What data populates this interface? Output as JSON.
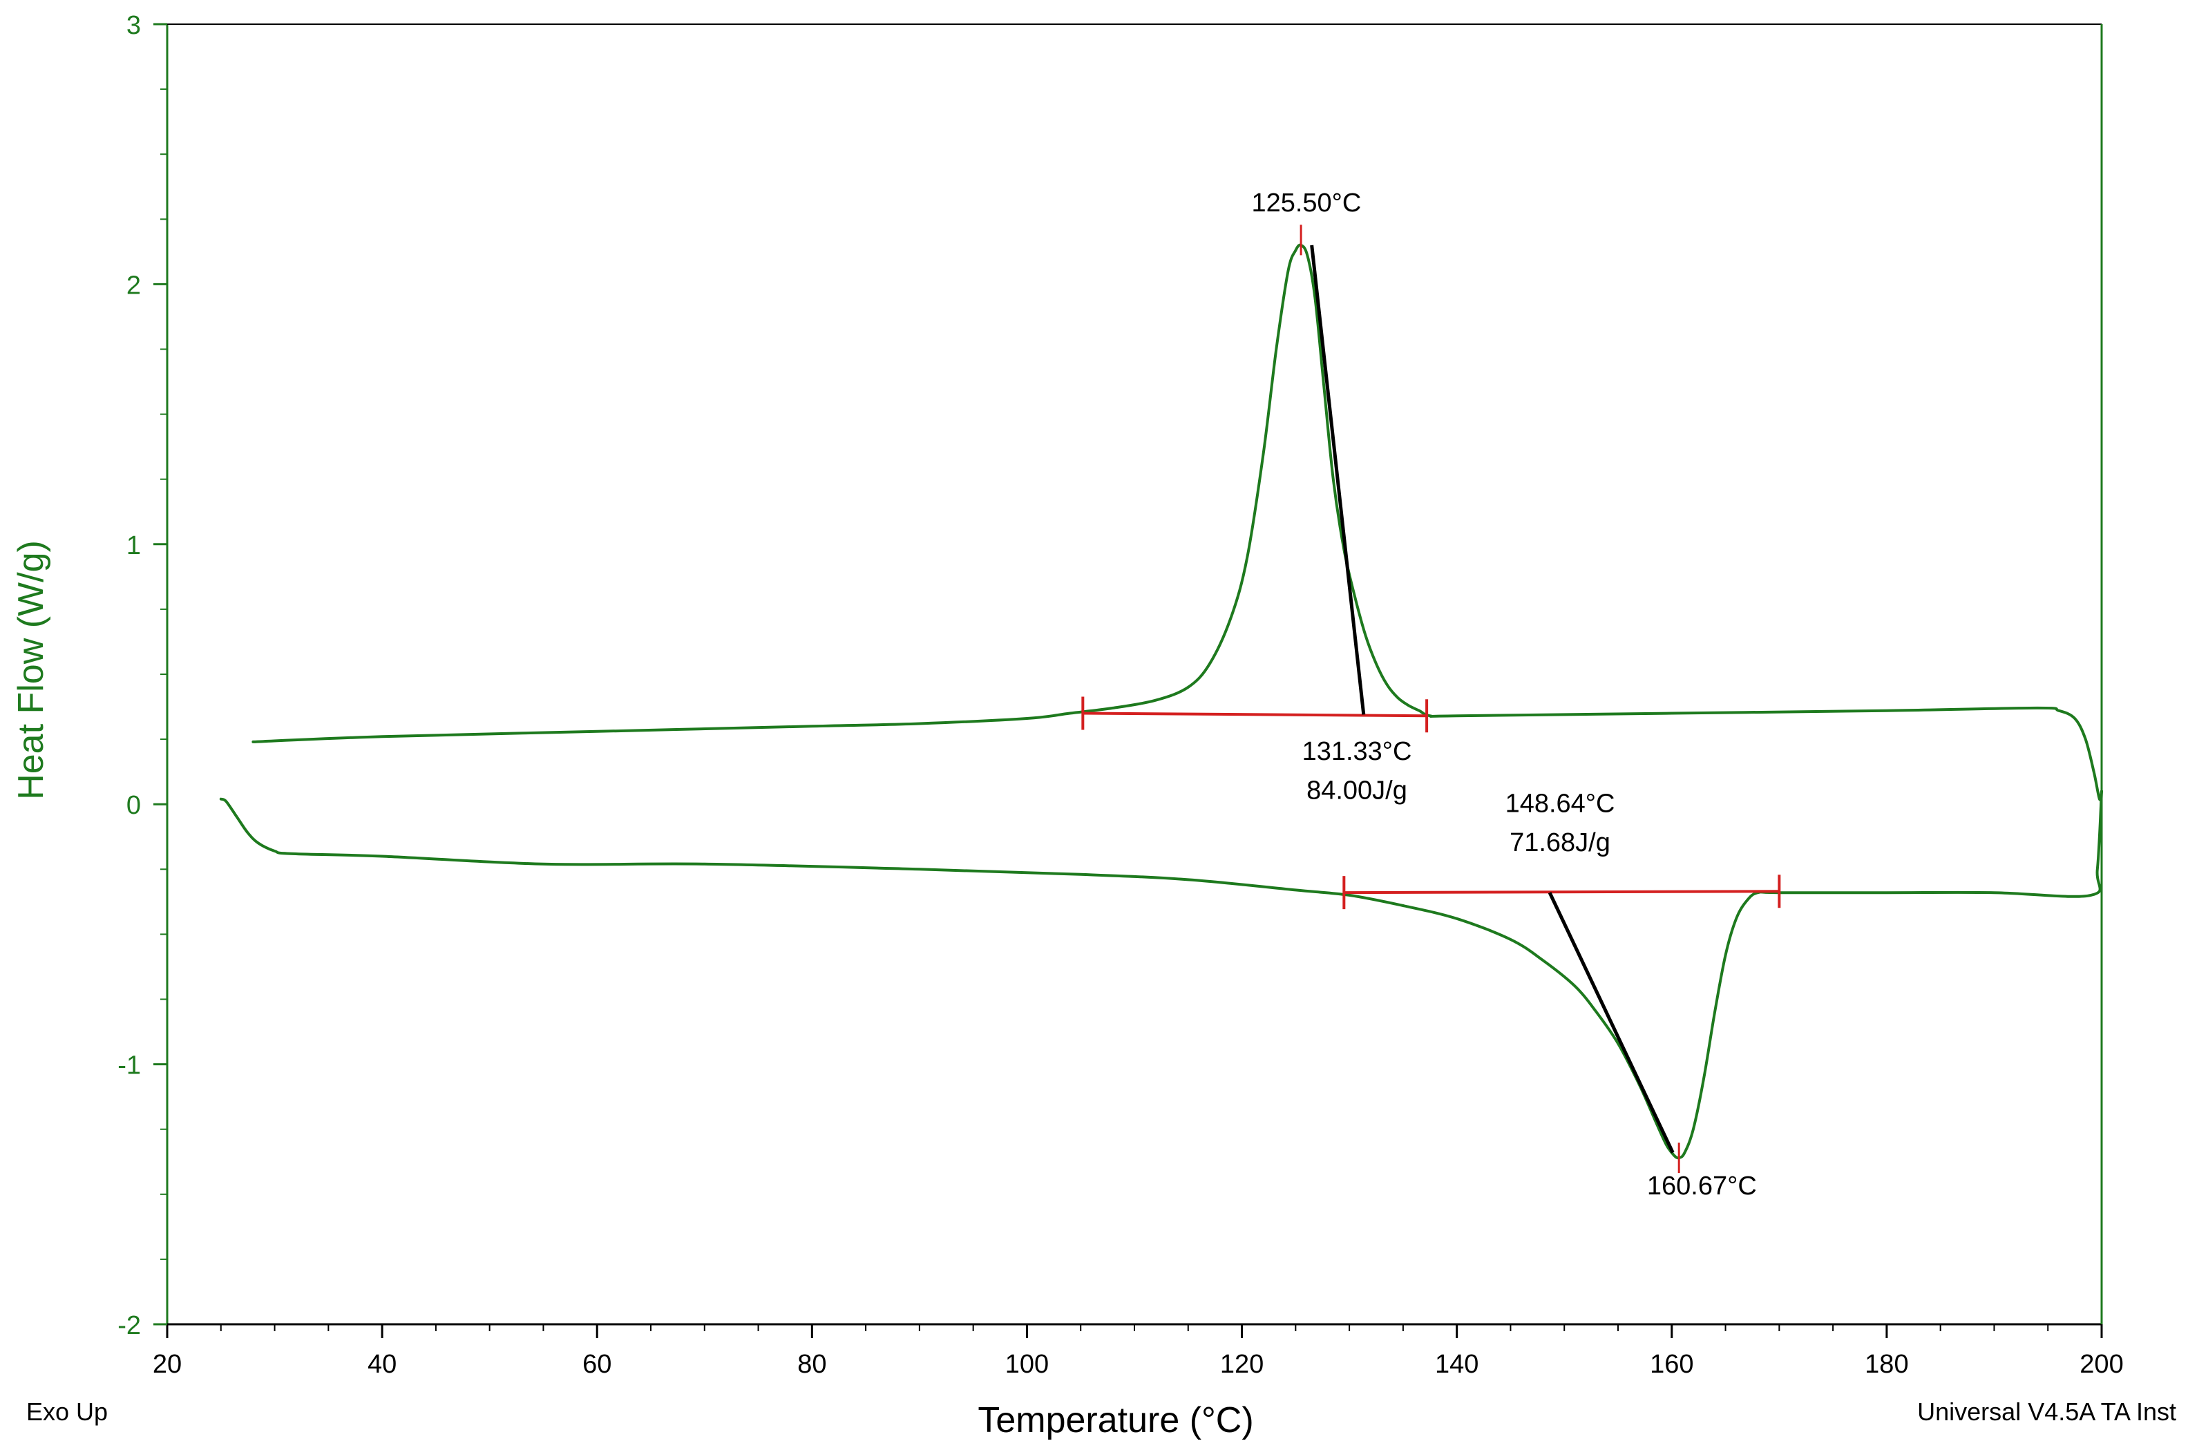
{
  "chart_data": {
    "type": "line",
    "title": "",
    "xlabel": "Temperature (°C)",
    "ylabel": "Heat Flow (W/g)",
    "xlim": [
      20,
      200
    ],
    "ylim": [
      -2,
      3
    ],
    "x_ticks": [
      20,
      40,
      60,
      80,
      100,
      120,
      140,
      160,
      180,
      200
    ],
    "x_tick_labels": [
      "20",
      "40",
      "60",
      "80",
      "100",
      "120",
      "140",
      "160",
      "180",
      "200"
    ],
    "y_ticks": [
      3,
      2,
      1,
      0,
      -1,
      -2
    ],
    "y_tick_labels": [
      "3",
      "2",
      "1",
      "0",
      "-1",
      "-2"
    ],
    "x_minor_step": 5,
    "y_minor_step": 0.25,
    "footer_left": "Exo Up",
    "footer_right": "Universal V4.5A TA Inst",
    "colors": {
      "curve": "#1e7a1e",
      "axis": "#1e7a1e",
      "baseline": "#d42020",
      "annotation": "#000000"
    },
    "series": [
      {
        "name": "cooling",
        "x": [
          28,
          40,
          60,
          80,
          90,
          100,
          104,
          108,
          112,
          115,
          117,
          119,
          120.5,
          122,
          123.2,
          124.3,
          125.0,
          125.5,
          126.1,
          126.8,
          127.6,
          128.5,
          129.5,
          130.5,
          131.5,
          132.5,
          133.5,
          134.5,
          135.5,
          136.5,
          137.5,
          140,
          160,
          180,
          194,
          196,
          197.5,
          198.5,
          199.3,
          199.8,
          200
        ],
        "y": [
          0.24,
          0.26,
          0.28,
          0.3,
          0.31,
          0.33,
          0.35,
          0.37,
          0.4,
          0.45,
          0.54,
          0.72,
          0.95,
          1.35,
          1.75,
          2.05,
          2.13,
          2.15,
          2.11,
          1.95,
          1.62,
          1.25,
          0.98,
          0.8,
          0.65,
          0.54,
          0.46,
          0.41,
          0.38,
          0.36,
          0.34,
          0.34,
          0.35,
          0.36,
          0.37,
          0.36,
          0.33,
          0.25,
          0.12,
          0.02,
          0.05
        ]
      },
      {
        "name": "heating",
        "x": [
          25,
          25.5,
          26.5,
          27.5,
          28.5,
          30,
          31.5,
          40,
          55,
          70,
          90,
          105,
          115,
          125,
          130,
          135,
          140,
          145,
          148,
          151,
          153,
          155,
          157,
          158.5,
          159.5,
          160.2,
          160.67,
          161.2,
          162,
          163,
          164,
          165,
          166,
          167,
          168,
          170,
          180,
          190,
          199,
          199.6,
          200
        ],
        "y": [
          0.02,
          0.01,
          -0.05,
          -0.11,
          -0.15,
          -0.18,
          -0.19,
          -0.2,
          -0.23,
          -0.23,
          -0.25,
          -0.27,
          -0.29,
          -0.33,
          -0.35,
          -0.39,
          -0.44,
          -0.52,
          -0.6,
          -0.7,
          -0.8,
          -0.92,
          -1.08,
          -1.22,
          -1.31,
          -1.35,
          -1.36,
          -1.34,
          -1.25,
          -1.05,
          -0.8,
          -0.58,
          -0.44,
          -0.37,
          -0.34,
          -0.34,
          -0.34,
          -0.34,
          -0.35,
          -0.25,
          0.05
        ]
      }
    ],
    "integration_baselines": [
      {
        "name": "crystallization",
        "x1": 105.2,
        "y1": 0.35,
        "x2": 137.2,
        "y2": 0.34
      },
      {
        "name": "melting",
        "x1": 129.5,
        "y1": -0.34,
        "x2": 170,
        "y2": -0.335
      }
    ],
    "peak_markers": [
      {
        "name": "crystallization-peak",
        "x": 125.5,
        "y": 2.17
      },
      {
        "name": "melting-peak",
        "x": 160.67,
        "y": -1.36
      }
    ],
    "leader_lines": [
      {
        "name": "crystallization-leader",
        "x1": 126.5,
        "y1": 2.15,
        "x2": 131.33,
        "y2": 0.345
      },
      {
        "name": "melting-leader",
        "x1": 148.64,
        "y1": -0.34,
        "x2": 160.1,
        "y2": -1.34
      }
    ],
    "annotations": [
      {
        "name": "cryst-peak-temp",
        "text": "125.50°C",
        "x": 126,
        "y": 2.28,
        "anchor": "middle"
      },
      {
        "name": "cryst-onset-temp",
        "text": "131.33°C",
        "x": 130.7,
        "y": 0.17,
        "anchor": "middle"
      },
      {
        "name": "cryst-enthalpy",
        "text": "84.00J/g",
        "x": 130.7,
        "y": 0.02,
        "anchor": "middle"
      },
      {
        "name": "melt-onset-temp",
        "text": "148.64°C",
        "x": 149.6,
        "y": -0.03,
        "anchor": "middle"
      },
      {
        "name": "melt-enthalpy",
        "text": "71.68J/g",
        "x": 149.6,
        "y": -0.18,
        "anchor": "middle"
      },
      {
        "name": "melt-peak-temp",
        "text": "160.67°C",
        "x": 162.8,
        "y": -1.5,
        "anchor": "middle"
      }
    ]
  }
}
